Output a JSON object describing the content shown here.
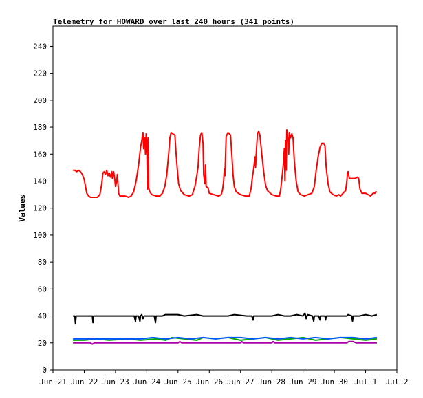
{
  "chart_data": {
    "type": "line",
    "title": "Telemetry for HOWARD over last 240 hours (341 points)",
    "xlabel": "",
    "ylabel": "Values",
    "ylim": [
      0,
      255
    ],
    "yticks": [
      0,
      20,
      40,
      60,
      80,
      100,
      120,
      140,
      160,
      180,
      200,
      220,
      240
    ],
    "x_tick_labels": [
      "Jun 21",
      "Jun 22",
      "Jun 23",
      "Jun 24",
      "Jun 25",
      "Jun 26",
      "Jun 27",
      "Jun 28",
      "Jun 29",
      "Jun 30",
      "Jul 1",
      "Jul 2"
    ],
    "x_unit": "days since Jun 21 00:00",
    "xlim": [
      0,
      11
    ],
    "grid": false,
    "legend": "none",
    "series": [
      {
        "color": "#ff0000",
        "points": [
          [
            0.64,
            148
          ],
          [
            0.7,
            148
          ],
          [
            0.76,
            147
          ],
          [
            0.82,
            148
          ],
          [
            0.88,
            147
          ],
          [
            0.94,
            145
          ],
          [
            1.0,
            141
          ],
          [
            1.04,
            136
          ],
          [
            1.08,
            131
          ],
          [
            1.14,
            129
          ],
          [
            1.2,
            128
          ],
          [
            1.3,
            128
          ],
          [
            1.42,
            128
          ],
          [
            1.5,
            130
          ],
          [
            1.56,
            138
          ],
          [
            1.6,
            146
          ],
          [
            1.64,
            147
          ],
          [
            1.68,
            145
          ],
          [
            1.72,
            148
          ],
          [
            1.76,
            144
          ],
          [
            1.8,
            146
          ],
          [
            1.84,
            143
          ],
          [
            1.88,
            147
          ],
          [
            1.9,
            142
          ],
          [
            1.94,
            147
          ],
          [
            1.98,
            141
          ],
          [
            2.0,
            136
          ],
          [
            2.04,
            140
          ],
          [
            2.06,
            145
          ],
          [
            2.1,
            131
          ],
          [
            2.14,
            129
          ],
          [
            2.3,
            129
          ],
          [
            2.42,
            128
          ],
          [
            2.5,
            129
          ],
          [
            2.58,
            132
          ],
          [
            2.66,
            140
          ],
          [
            2.74,
            152
          ],
          [
            2.8,
            165
          ],
          [
            2.84,
            170
          ],
          [
            2.88,
            176
          ],
          [
            2.9,
            164
          ],
          [
            2.92,
            168
          ],
          [
            2.94,
            172
          ],
          [
            2.96,
            160
          ],
          [
            2.98,
            175
          ],
          [
            3.0,
            170
          ],
          [
            3.02,
            134
          ],
          [
            3.04,
            172
          ],
          [
            3.06,
            135
          ],
          [
            3.1,
            132
          ],
          [
            3.16,
            130
          ],
          [
            3.3,
            129
          ],
          [
            3.42,
            129
          ],
          [
            3.5,
            131
          ],
          [
            3.58,
            136
          ],
          [
            3.64,
            145
          ],
          [
            3.7,
            160
          ],
          [
            3.74,
            172
          ],
          [
            3.78,
            176
          ],
          [
            3.84,
            175
          ],
          [
            3.9,
            174
          ],
          [
            3.94,
            160
          ],
          [
            3.98,
            148
          ],
          [
            4.02,
            138
          ],
          [
            4.08,
            133
          ],
          [
            4.2,
            130
          ],
          [
            4.36,
            129
          ],
          [
            4.46,
            130
          ],
          [
            4.54,
            136
          ],
          [
            4.6,
            144
          ],
          [
            4.64,
            150
          ],
          [
            4.68,
            165
          ],
          [
            4.72,
            174
          ],
          [
            4.76,
            176
          ],
          [
            4.8,
            168
          ],
          [
            4.82,
            145
          ],
          [
            4.86,
            138
          ],
          [
            4.88,
            152
          ],
          [
            4.9,
            136
          ],
          [
            4.96,
            135
          ],
          [
            5.0,
            131
          ],
          [
            5.14,
            130
          ],
          [
            5.3,
            129
          ],
          [
            5.38,
            130
          ],
          [
            5.42,
            133
          ],
          [
            5.46,
            140
          ],
          [
            5.48,
            149
          ],
          [
            5.5,
            144
          ],
          [
            5.54,
            173
          ],
          [
            5.6,
            176
          ],
          [
            5.68,
            174
          ],
          [
            5.72,
            160
          ],
          [
            5.76,
            145
          ],
          [
            5.8,
            136
          ],
          [
            5.86,
            132
          ],
          [
            6.0,
            130
          ],
          [
            6.16,
            129
          ],
          [
            6.28,
            129
          ],
          [
            6.34,
            135
          ],
          [
            6.38,
            143
          ],
          [
            6.42,
            149
          ],
          [
            6.46,
            158
          ],
          [
            6.48,
            150
          ],
          [
            6.5,
            160
          ],
          [
            6.54,
            175
          ],
          [
            6.58,
            177
          ],
          [
            6.62,
            174
          ],
          [
            6.68,
            160
          ],
          [
            6.74,
            147
          ],
          [
            6.8,
            137
          ],
          [
            6.86,
            133
          ],
          [
            7.0,
            130
          ],
          [
            7.14,
            129
          ],
          [
            7.24,
            129
          ],
          [
            7.28,
            133
          ],
          [
            7.32,
            141
          ],
          [
            7.36,
            150
          ],
          [
            7.4,
            164
          ],
          [
            7.42,
            140
          ],
          [
            7.44,
            170
          ],
          [
            7.46,
            148
          ],
          [
            7.48,
            178
          ],
          [
            7.52,
            170
          ],
          [
            7.54,
            160
          ],
          [
            7.56,
            176
          ],
          [
            7.6,
            172
          ],
          [
            7.64,
            175
          ],
          [
            7.68,
            172
          ],
          [
            7.72,
            155
          ],
          [
            7.78,
            140
          ],
          [
            7.84,
            132
          ],
          [
            7.92,
            130
          ],
          [
            8.04,
            129
          ],
          [
            8.16,
            130
          ],
          [
            8.28,
            131
          ],
          [
            8.36,
            136
          ],
          [
            8.42,
            148
          ],
          [
            8.48,
            158
          ],
          [
            8.54,
            165
          ],
          [
            8.6,
            168
          ],
          [
            8.66,
            168
          ],
          [
            8.7,
            166
          ],
          [
            8.74,
            150
          ],
          [
            8.8,
            138
          ],
          [
            8.86,
            132
          ],
          [
            8.96,
            130
          ],
          [
            9.06,
            129
          ],
          [
            9.14,
            130
          ],
          [
            9.2,
            129
          ],
          [
            9.28,
            131
          ],
          [
            9.36,
            133
          ],
          [
            9.4,
            140
          ],
          [
            9.42,
            146
          ],
          [
            9.44,
            147
          ],
          [
            9.48,
            142
          ],
          [
            9.56,
            142
          ],
          [
            9.66,
            142
          ],
          [
            9.74,
            143
          ],
          [
            9.78,
            142
          ],
          [
            9.82,
            134
          ],
          [
            9.88,
            131
          ],
          [
            10.0,
            131
          ],
          [
            10.08,
            130
          ],
          [
            10.16,
            129
          ],
          [
            10.24,
            131
          ],
          [
            10.3,
            131
          ],
          [
            10.32,
            132
          ],
          [
            10.36,
            132
          ]
        ]
      },
      {
        "color": "#000000",
        "points": [
          [
            0.64,
            40
          ],
          [
            0.7,
            40
          ],
          [
            0.72,
            34
          ],
          [
            0.74,
            40
          ],
          [
            1.2,
            40
          ],
          [
            1.26,
            40
          ],
          [
            1.28,
            35
          ],
          [
            1.3,
            40
          ],
          [
            2.0,
            40
          ],
          [
            2.6,
            40
          ],
          [
            2.64,
            36
          ],
          [
            2.66,
            40
          ],
          [
            2.74,
            40
          ],
          [
            2.78,
            36
          ],
          [
            2.8,
            40
          ],
          [
            2.84,
            41
          ],
          [
            2.88,
            38
          ],
          [
            2.92,
            40
          ],
          [
            3.0,
            40
          ],
          [
            3.24,
            40
          ],
          [
            3.28,
            35
          ],
          [
            3.3,
            40
          ],
          [
            3.5,
            40
          ],
          [
            3.6,
            41
          ],
          [
            4.0,
            41
          ],
          [
            4.2,
            40
          ],
          [
            4.6,
            41
          ],
          [
            4.8,
            40
          ],
          [
            5.0,
            40
          ],
          [
            5.2,
            40
          ],
          [
            5.6,
            40
          ],
          [
            5.8,
            41
          ],
          [
            6.2,
            40
          ],
          [
            6.36,
            40
          ],
          [
            6.4,
            37
          ],
          [
            6.42,
            40
          ],
          [
            7.0,
            40
          ],
          [
            7.2,
            41
          ],
          [
            7.4,
            40
          ],
          [
            7.6,
            40
          ],
          [
            7.8,
            41
          ],
          [
            8.0,
            40
          ],
          [
            8.06,
            42
          ],
          [
            8.1,
            38
          ],
          [
            8.14,
            41
          ],
          [
            8.3,
            40
          ],
          [
            8.34,
            36
          ],
          [
            8.36,
            40
          ],
          [
            8.5,
            40
          ],
          [
            8.54,
            37
          ],
          [
            8.56,
            40
          ],
          [
            8.7,
            40
          ],
          [
            8.72,
            37
          ],
          [
            8.74,
            40
          ],
          [
            9.0,
            40
          ],
          [
            9.4,
            40
          ],
          [
            9.44,
            41
          ],
          [
            9.56,
            40
          ],
          [
            9.58,
            36
          ],
          [
            9.6,
            40
          ],
          [
            9.8,
            40
          ],
          [
            10.0,
            41
          ],
          [
            10.2,
            40
          ],
          [
            10.36,
            41
          ]
        ]
      },
      {
        "color": "#00aa00",
        "points": [
          [
            0.64,
            22
          ],
          [
            1.0,
            22
          ],
          [
            1.4,
            23
          ],
          [
            1.8,
            22
          ],
          [
            2.4,
            23
          ],
          [
            2.8,
            22
          ],
          [
            3.3,
            23
          ],
          [
            3.6,
            22
          ],
          [
            3.8,
            24
          ],
          [
            4.2,
            23
          ],
          [
            4.6,
            22
          ],
          [
            4.8,
            24
          ],
          [
            5.2,
            23
          ],
          [
            5.6,
            24
          ],
          [
            6.0,
            22
          ],
          [
            6.4,
            23
          ],
          [
            6.8,
            24
          ],
          [
            7.2,
            22
          ],
          [
            7.6,
            23
          ],
          [
            8.0,
            24
          ],
          [
            8.4,
            22
          ],
          [
            8.8,
            23
          ],
          [
            9.2,
            24
          ],
          [
            9.6,
            23
          ],
          [
            10.0,
            22
          ],
          [
            10.36,
            23
          ]
        ]
      },
      {
        "color": "#0055ff",
        "points": [
          [
            0.64,
            23
          ],
          [
            1.0,
            23
          ],
          [
            1.6,
            23
          ],
          [
            2.2,
            23
          ],
          [
            2.8,
            23
          ],
          [
            3.2,
            24
          ],
          [
            3.6,
            23
          ],
          [
            4.0,
            24
          ],
          [
            4.4,
            23
          ],
          [
            4.8,
            24
          ],
          [
            5.2,
            23
          ],
          [
            5.6,
            24
          ],
          [
            6.0,
            24
          ],
          [
            6.4,
            23
          ],
          [
            6.8,
            24
          ],
          [
            7.2,
            23
          ],
          [
            7.6,
            24
          ],
          [
            8.0,
            23
          ],
          [
            8.4,
            24
          ],
          [
            8.8,
            23
          ],
          [
            9.2,
            24
          ],
          [
            9.6,
            24
          ],
          [
            10.0,
            23
          ],
          [
            10.36,
            24
          ]
        ]
      },
      {
        "color": "#aa00aa",
        "points": [
          [
            0.64,
            20
          ],
          [
            1.2,
            20
          ],
          [
            1.26,
            19
          ],
          [
            1.32,
            20
          ],
          [
            2.0,
            20
          ],
          [
            4.0,
            20
          ],
          [
            4.06,
            21
          ],
          [
            4.12,
            20
          ],
          [
            6.0,
            20
          ],
          [
            6.04,
            21
          ],
          [
            6.1,
            20
          ],
          [
            7.0,
            20
          ],
          [
            7.04,
            21
          ],
          [
            7.1,
            20
          ],
          [
            9.0,
            20
          ],
          [
            9.4,
            20
          ],
          [
            9.46,
            21
          ],
          [
            9.6,
            21
          ],
          [
            9.7,
            20
          ],
          [
            10.36,
            20
          ]
        ]
      }
    ]
  }
}
